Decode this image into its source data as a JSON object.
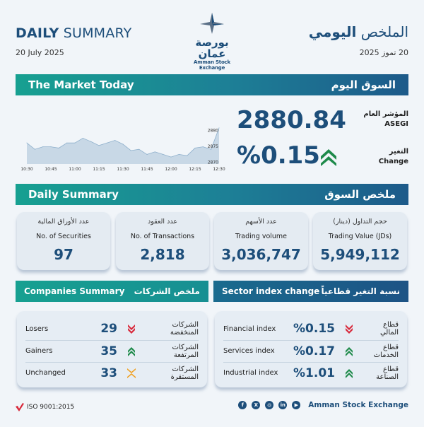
{
  "header": {
    "title_en_bold": "DAILY",
    "title_en_light": "SUMMARY",
    "date_en": "20 July 2025",
    "title_ar_light": "الملخص",
    "title_ar_bold": "اليومي",
    "date_ar": "20 تموز 2025",
    "logo_ar": "بورصة عمان",
    "logo_en": "Amman Stock Exchange"
  },
  "market_today": {
    "title_en": "The Market Today",
    "title_ar": "السوق اليوم",
    "index_label_ar": "المؤشر العام",
    "index_label_en": "ASEGI",
    "index_value": "2880.84",
    "change_label_ar": "التغير",
    "change_label_en": "Change",
    "change_value": "%0.15",
    "change_direction": "up"
  },
  "chart_data": {
    "type": "area",
    "x": [
      "10:30",
      "10:35",
      "10:40",
      "10:45",
      "10:50",
      "10:55",
      "11:00",
      "11:05",
      "11:10",
      "11:15",
      "11:20",
      "11:25",
      "11:30",
      "11:35",
      "11:40",
      "11:45",
      "11:50",
      "11:55",
      "12:00",
      "12:05",
      "12:10",
      "12:15",
      "12:20",
      "12:25",
      "12:30"
    ],
    "values": [
      2876.1,
      2874.1,
      2874.9,
      2874.9,
      2874.5,
      2876.1,
      2876.1,
      2877.6,
      2876.5,
      2875.3,
      2876.1,
      2876.9,
      2875.7,
      2873.7,
      2874.1,
      2872.5,
      2873.3,
      2872.5,
      2871.7,
      2872.5,
      2872.1,
      2874.5,
      2874.9,
      2874.1,
      2880.8
    ],
    "x_ticks": [
      "10:30",
      "10:45",
      "11:00",
      "11:15",
      "11:30",
      "11:45",
      "12:00",
      "12:15",
      "12:30"
    ],
    "y_ticks": [
      "2880",
      "2875",
      "2870"
    ],
    "ylim": [
      2869.5,
      2881
    ],
    "grid": false,
    "line_color": "#8fb0cc",
    "fill_color": "#c8d8e6"
  },
  "daily_summary": {
    "title_en": "Daily Summary",
    "title_ar": "ملخص السوق",
    "cards": [
      {
        "ar": "عدد الأوراق المالية",
        "en": "No. of Securities",
        "value": "97"
      },
      {
        "ar": "عدد العقود",
        "en": "No. of Transactions",
        "value": "2,818"
      },
      {
        "ar": "عدد الأسهم",
        "en": "Trading volume",
        "value": "3,036,747"
      },
      {
        "ar": "حجم التداول (دينار)",
        "en": "Trading Value (JDs)",
        "value": "5,949,112"
      }
    ]
  },
  "companies": {
    "title_en": "Companies Summary",
    "title_ar": "ملخص الشركات",
    "rows": [
      {
        "en": "Losers",
        "value": "29",
        "ar": "الشركات المنخفضة",
        "icon": "down"
      },
      {
        "en": "Gainers",
        "value": "35",
        "ar": "الشركات المرتفعة",
        "icon": "up"
      },
      {
        "en": "Unchanged",
        "value": "33",
        "ar": "الشركات المستقرة",
        "icon": "flat"
      }
    ]
  },
  "sectors": {
    "title_en": "Sector index change",
    "title_ar": "نسبة التغير قطاعياً",
    "rows": [
      {
        "en": "Financial index",
        "value": "%0.15",
        "ar": "قطاع المالي",
        "icon": "down"
      },
      {
        "en": "Services index",
        "value": "%0.17",
        "ar": "قطاع الخدمات",
        "icon": "up"
      },
      {
        "en": "Industrial index",
        "value": "%1.01",
        "ar": "قطاع الصناعة",
        "icon": "up"
      }
    ]
  },
  "footer": {
    "iso": "ISO 9001:2015",
    "org": "Amman Stock Exchange",
    "social": [
      "facebook",
      "x",
      "instagram",
      "linkedin",
      "youtube"
    ]
  },
  "colors": {
    "primary": "#1d4e7a",
    "teal": "#17a091",
    "up": "#1e8a4a",
    "down": "#d8283a",
    "flat": "#f0a020"
  }
}
